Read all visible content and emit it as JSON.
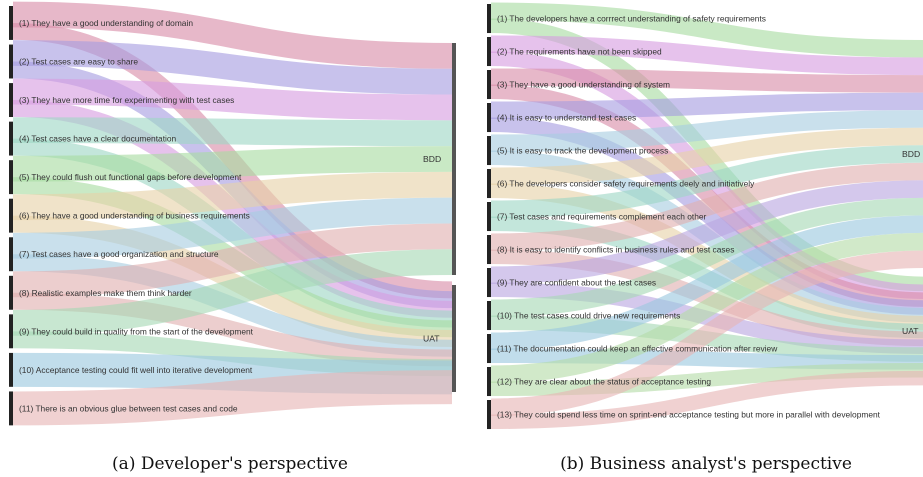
{
  "panels": [
    {
      "caption": "(a) Developer's perspective",
      "targets": [
        "BDD",
        "UAT"
      ],
      "items": [
        "(1) They have a good understanding of domain",
        "(2) Test cases are easy to share",
        "(3) They have more time for experimenting with test cases",
        "(4) Test cases have a clear documentation",
        "(5) They could flush out functional gaps before development",
        "(6) They have a good understanding of business requirements",
        "(7) Test cases have a good organization and structure",
        "(8) Realistic examples make them think harder",
        "(9) They could build in quality from the start of the development",
        "(10) Acceptance testing could fit well into iterative development",
        "(11) There is an obvious glue between test cases and code"
      ],
      "flows": [
        {
          "source": 0,
          "target": 0,
          "color": "#d98ca8"
        },
        {
          "source": 0,
          "target": 1,
          "color": "#d98ca8"
        },
        {
          "source": 1,
          "target": 0,
          "color": "#a79de0"
        },
        {
          "source": 1,
          "target": 1,
          "color": "#a79de0"
        },
        {
          "source": 2,
          "target": 0,
          "color": "#d69ce0"
        },
        {
          "source": 2,
          "target": 1,
          "color": "#d69ce0"
        },
        {
          "source": 3,
          "target": 0,
          "color": "#9ed6c5"
        },
        {
          "source": 3,
          "target": 1,
          "color": "#9ed6c5"
        },
        {
          "source": 4,
          "target": 0,
          "color": "#a8dca2"
        },
        {
          "source": 4,
          "target": 1,
          "color": "#a8dca2"
        },
        {
          "source": 5,
          "target": 0,
          "color": "#e6d2a8"
        },
        {
          "source": 5,
          "target": 1,
          "color": "#e6d2a8"
        },
        {
          "source": 6,
          "target": 0,
          "color": "#a8cde0"
        },
        {
          "source": 6,
          "target": 1,
          "color": "#a8cde0"
        },
        {
          "source": 7,
          "target": 0,
          "color": "#e0b0b0"
        },
        {
          "source": 7,
          "target": 1,
          "color": "#e0b0b0"
        },
        {
          "source": 8,
          "target": 0,
          "color": "#a6d9b5"
        },
        {
          "source": 8,
          "target": 1,
          "color": "#a6d9b5"
        },
        {
          "source": 9,
          "target": 1,
          "color": "#9bc8df"
        },
        {
          "source": 10,
          "target": 1,
          "color": "#e6b4b4"
        }
      ]
    },
    {
      "caption": "(b) Business analyst's perspective",
      "targets": [
        "BDD",
        "UAT"
      ],
      "items": [
        "(1) The developers have a corrrect understanding of safety requirements",
        "(2) The requirements have not been skipped",
        "(3) They have a good understanding of system",
        "(4) It is easy to understand test cases",
        "(5) It is easy to track the development process",
        "(6) The developers consider safety requirements deely and initiatively",
        "(7) Test cases and requirements complement each other",
        "(8) It is easy to identify conflicts in business rules and test cases",
        "(9) They are confident about the test cases",
        "(10) The test cases could drive new requirements",
        "(11) The documentation could keep an effective communication after review",
        "(12) They are clear about the status of acceptance testing",
        "(13) They could spend less time on sprint-end acceptance testing but more in parallel with development"
      ],
      "flows": [
        {
          "source": 0,
          "target": 0,
          "color": "#a8dca2"
        },
        {
          "source": 0,
          "target": 1,
          "color": "#a8dca2"
        },
        {
          "source": 1,
          "target": 0,
          "color": "#d69ce0"
        },
        {
          "source": 1,
          "target": 1,
          "color": "#d69ce0"
        },
        {
          "source": 2,
          "target": 0,
          "color": "#d98ca8"
        },
        {
          "source": 2,
          "target": 1,
          "color": "#d98ca8"
        },
        {
          "source": 3,
          "target": 0,
          "color": "#a79de0"
        },
        {
          "source": 3,
          "target": 1,
          "color": "#a79de0"
        },
        {
          "source": 4,
          "target": 0,
          "color": "#a8cde0"
        },
        {
          "source": 4,
          "target": 1,
          "color": "#a8cde0"
        },
        {
          "source": 5,
          "target": 0,
          "color": "#e6d2a8"
        },
        {
          "source": 5,
          "target": 1,
          "color": "#e6d2a8"
        },
        {
          "source": 6,
          "target": 0,
          "color": "#9ed6c5"
        },
        {
          "source": 6,
          "target": 1,
          "color": "#9ed6c5"
        },
        {
          "source": 7,
          "target": 0,
          "color": "#e0b0b0"
        },
        {
          "source": 7,
          "target": 1,
          "color": "#e0b0b0"
        },
        {
          "source": 8,
          "target": 0,
          "color": "#b9a7e0"
        },
        {
          "source": 8,
          "target": 1,
          "color": "#b9a7e0"
        },
        {
          "source": 9,
          "target": 0,
          "color": "#a6d9b5"
        },
        {
          "source": 9,
          "target": 1,
          "color": "#a6d9b5"
        },
        {
          "source": 10,
          "target": 0,
          "color": "#9bc8df"
        },
        {
          "source": 10,
          "target": 1,
          "color": "#9bc8df"
        },
        {
          "source": 11,
          "target": 0,
          "color": "#b5dca8"
        },
        {
          "source": 11,
          "target": 1,
          "color": "#b5dca8"
        },
        {
          "source": 12,
          "target": 0,
          "color": "#e6b4b4"
        },
        {
          "source": 12,
          "target": 1,
          "color": "#e6b4b4"
        }
      ]
    }
  ]
}
